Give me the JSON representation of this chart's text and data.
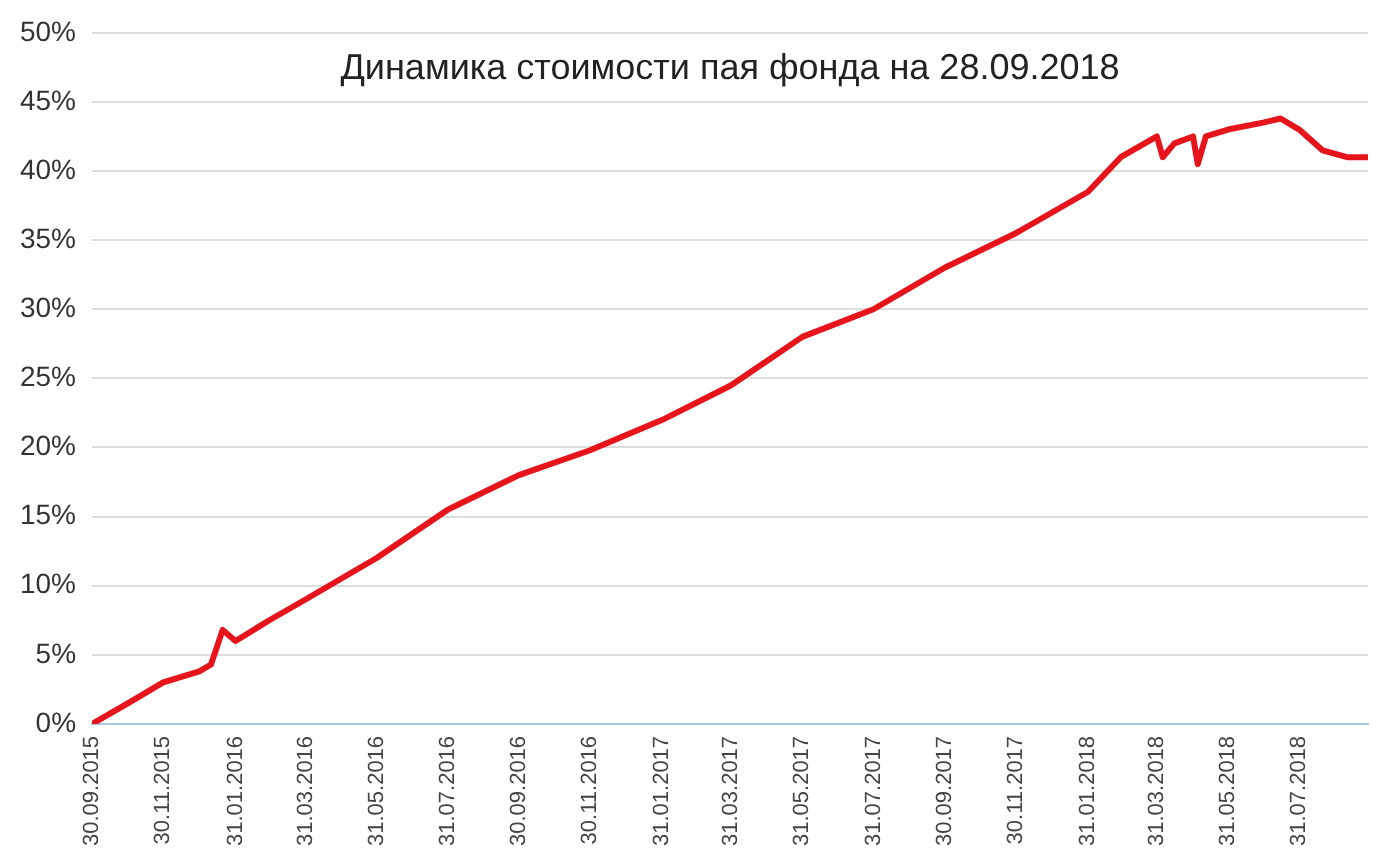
{
  "chart_data": {
    "type": "line",
    "title": "Динамика стоимости пая фонда на 28.09.2018",
    "x": [
      "2015-09-30",
      "2015-10-31",
      "2015-11-30",
      "2015-12-31",
      "2016-01-10",
      "2016-01-20",
      "2016-01-31",
      "2016-02-29",
      "2016-03-31",
      "2016-05-31",
      "2016-07-31",
      "2016-09-30",
      "2016-11-30",
      "2017-01-31",
      "2017-03-31",
      "2017-05-31",
      "2017-07-31",
      "2017-09-30",
      "2017-11-30",
      "2018-01-31",
      "2018-02-28",
      "2018-03-31",
      "2018-04-05",
      "2018-04-15",
      "2018-05-01",
      "2018-05-05",
      "2018-05-12",
      "2018-05-31",
      "2018-06-30",
      "2018-07-15",
      "2018-07-31",
      "2018-08-20",
      "2018-09-10",
      "2018-09-28"
    ],
    "series": [
      {
        "color": "#e8141c",
        "values": [
          0,
          1.5,
          3,
          3.8,
          4.3,
          6.8,
          6,
          7.5,
          9,
          12,
          15.5,
          18,
          19.8,
          22,
          24.5,
          28,
          30,
          33,
          35.5,
          38.5,
          41,
          42.5,
          41,
          42,
          42.5,
          40.5,
          42.5,
          43,
          43.5,
          43.8,
          43,
          41.5,
          41,
          41
        ]
      }
    ],
    "xlim": [
      "2015-09-30",
      "2018-09-28"
    ],
    "xticks": [
      {
        "value": "2015-09-30",
        "label": "30.09.2015"
      },
      {
        "value": "2015-11-30",
        "label": "30.11.2015"
      },
      {
        "value": "2016-01-31",
        "label": "31.01.2016"
      },
      {
        "value": "2016-03-31",
        "label": "31.03.2016"
      },
      {
        "value": "2016-05-31",
        "label": "31.05.2016"
      },
      {
        "value": "2016-07-31",
        "label": "31.07.2016"
      },
      {
        "value": "2016-09-30",
        "label": "30.09.2016"
      },
      {
        "value": "2016-11-30",
        "label": "30.11.2016"
      },
      {
        "value": "2017-01-31",
        "label": "31.01.2017"
      },
      {
        "value": "2017-03-31",
        "label": "31.03.2017"
      },
      {
        "value": "2017-05-31",
        "label": "31.05.2017"
      },
      {
        "value": "2017-07-31",
        "label": "31.07.2017"
      },
      {
        "value": "2017-09-30",
        "label": "30.09.2017"
      },
      {
        "value": "2017-11-30",
        "label": "30.11.2017"
      },
      {
        "value": "2018-01-31",
        "label": "31.01.2018"
      },
      {
        "value": "2018-03-31",
        "label": "31.03.2018"
      },
      {
        "value": "2018-05-31",
        "label": "31.05.2018"
      },
      {
        "value": "2018-07-31",
        "label": "31.07.2018"
      }
    ],
    "ylim": [
      0,
      50
    ],
    "yticks": [
      {
        "value": 0,
        "label": "0%"
      },
      {
        "value": 5,
        "label": "5%"
      },
      {
        "value": 10,
        "label": "10%"
      },
      {
        "value": 15,
        "label": "15%"
      },
      {
        "value": 20,
        "label": "20%"
      },
      {
        "value": 25,
        "label": "25%"
      },
      {
        "value": 30,
        "label": "30%"
      },
      {
        "value": 35,
        "label": "35%"
      },
      {
        "value": 40,
        "label": "40%"
      },
      {
        "value": 45,
        "label": "45%"
      },
      {
        "value": 50,
        "label": "50%"
      }
    ],
    "grid": "y",
    "legend": false,
    "marker": "none",
    "line_style": "solid"
  }
}
